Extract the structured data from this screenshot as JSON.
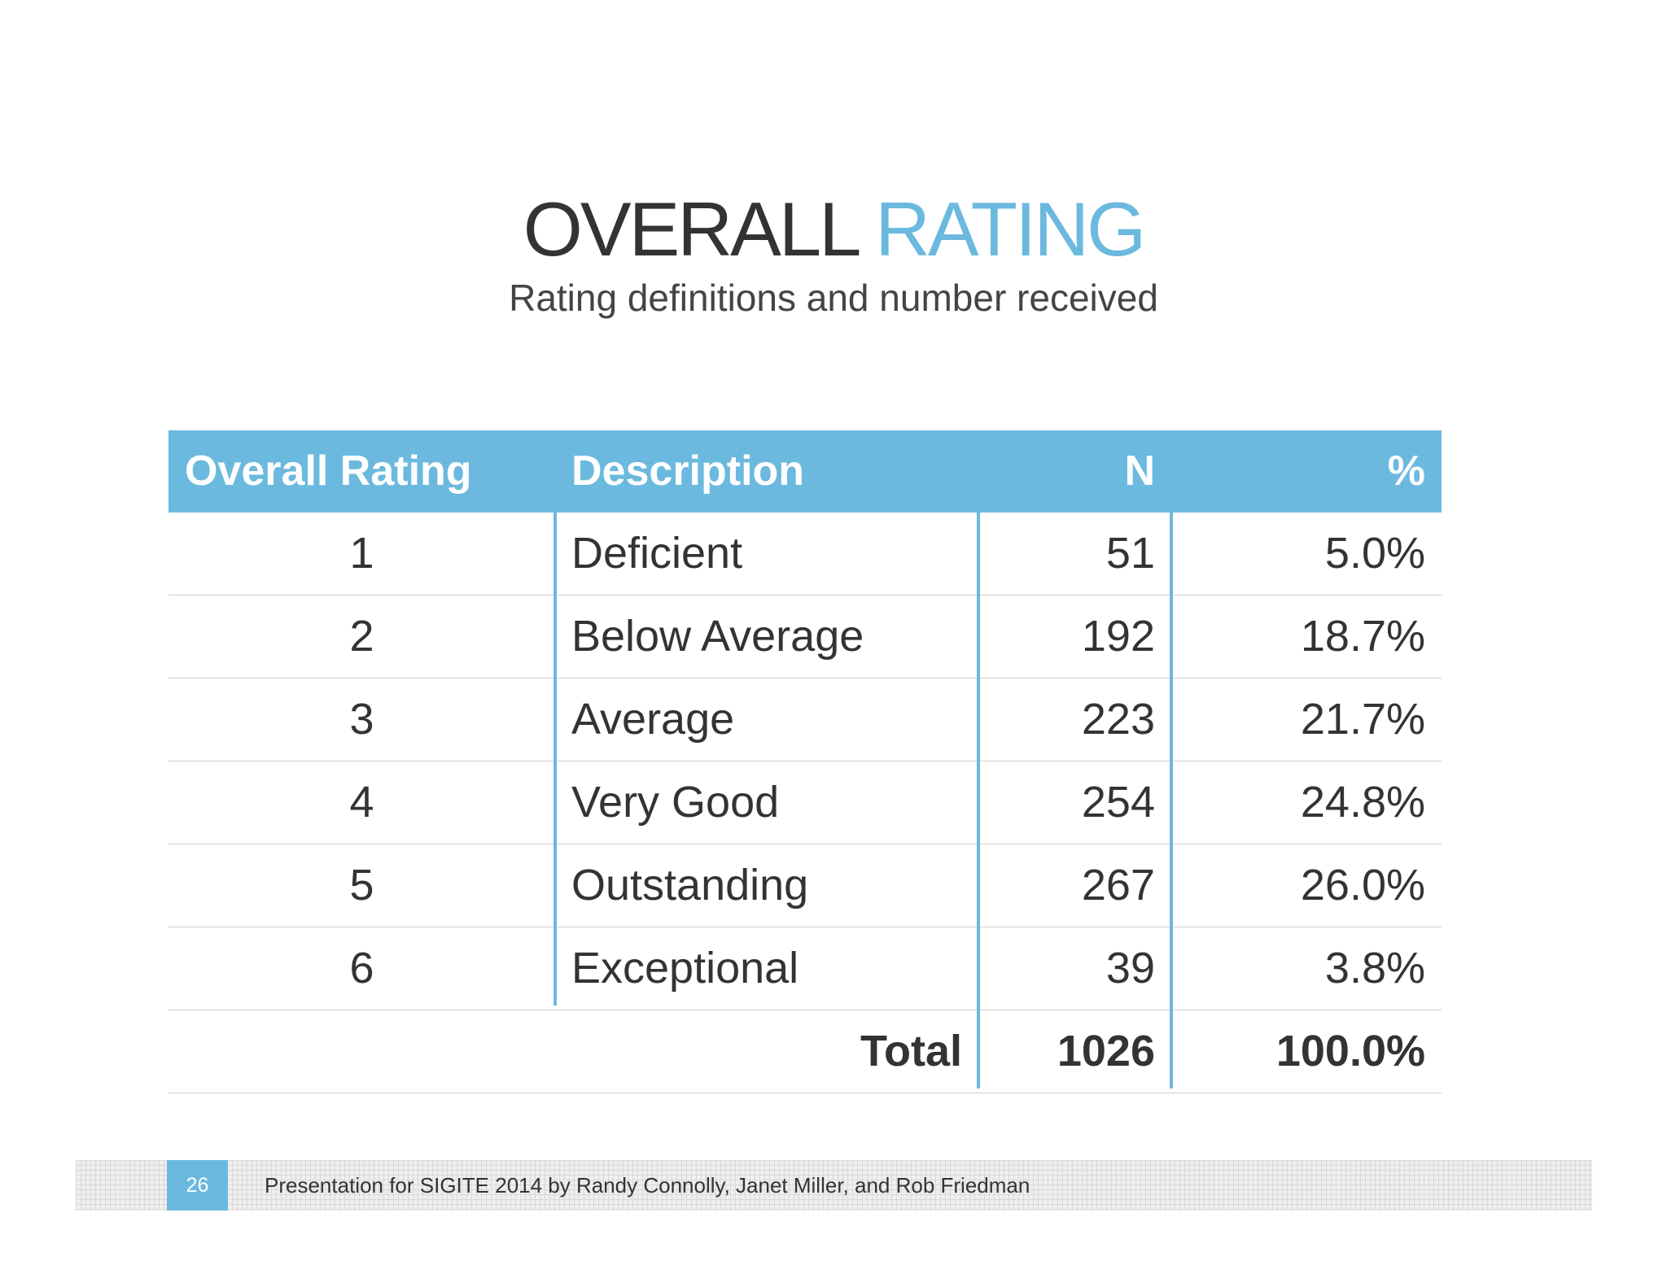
{
  "slide": {
    "title_part1": "OVERALL",
    "title_part2": "RATING",
    "subtitle": "Rating definitions and number received"
  },
  "table": {
    "headers": [
      "Overall Rating",
      "Description",
      "N",
      "%"
    ],
    "rows": [
      {
        "rating": "1",
        "description": "Deficient",
        "n": "51",
        "pct": "5.0%"
      },
      {
        "rating": "2",
        "description": "Below Average",
        "n": "192",
        "pct": "18.7%"
      },
      {
        "rating": "3",
        "description": "Average",
        "n": "223",
        "pct": "21.7%"
      },
      {
        "rating": "4",
        "description": "Very Good",
        "n": "254",
        "pct": "24.8%"
      },
      {
        "rating": "5",
        "description": "Outstanding",
        "n": "267",
        "pct": "26.0%"
      },
      {
        "rating": "6",
        "description": "Exceptional",
        "n": "39",
        "pct": "3.8%"
      }
    ],
    "total": {
      "label": "Total",
      "n": "1026",
      "pct": "100.0%"
    }
  },
  "footer": {
    "page_number": "26",
    "text": "Presentation for SIGITE 2014 by Randy Connolly, Janet Miller, and Rob Friedman"
  },
  "colors": {
    "accent": "#6bb9de",
    "text": "#333333"
  }
}
